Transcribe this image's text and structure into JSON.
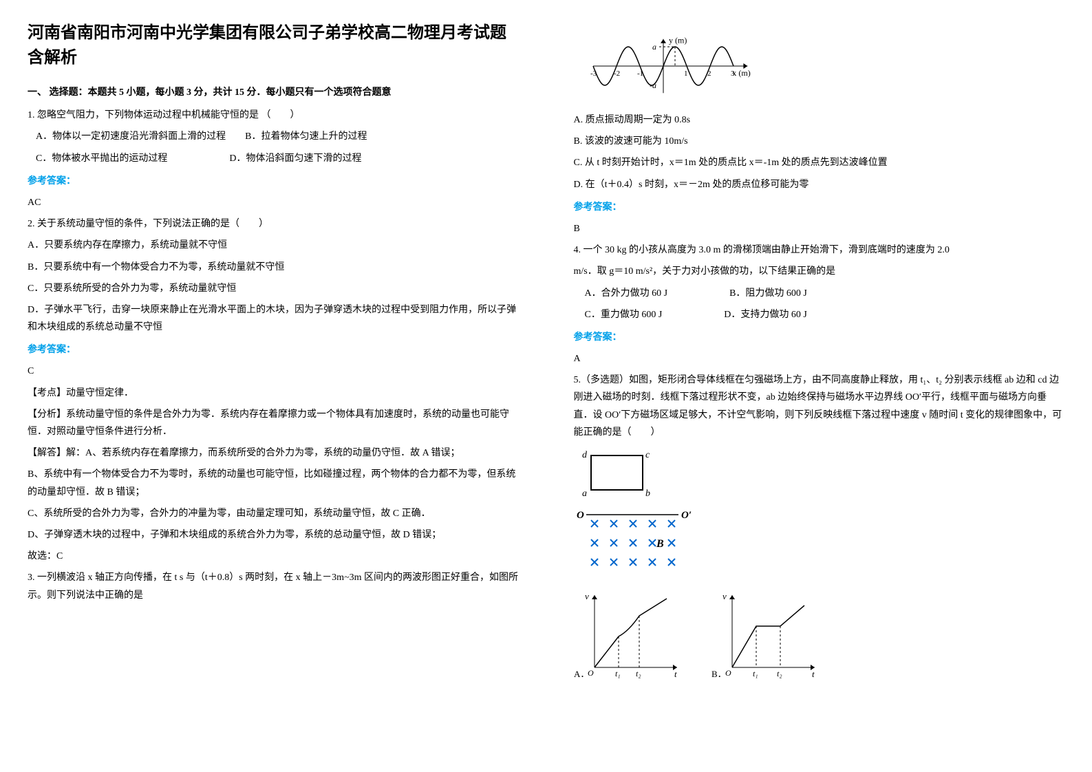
{
  "title": "河南省南阳市河南中光学集团有限公司子弟学校高二物理月考试题含解析",
  "section1": "一、 选择题：本题共 5 小题，每小题 3 分，共计 15 分．每小题只有一个选项符合题意",
  "q1": {
    "stem": "1. 忽略空气阻力，下列物体运动过程中机械能守恒的是    （　　）",
    "a": "A．物体以一定初速度沿光滑斜面上滑的过程",
    "b": "B．拉着物体匀速上升的过程",
    "c": "C．物体被水平抛出的运动过程",
    "d": "D．物体沿斜面匀速下滑的过程",
    "answer_label": "参考答案：",
    "answer": "AC"
  },
  "q2": {
    "stem": "2. 关于系统动量守恒的条件，下列说法正确的是（　　）",
    "a": "A．只要系统内存在摩擦力，系统动量就不守恒",
    "b": "B．只要系统中有一个物体受合力不为零，系统动量就不守恒",
    "c": "C．只要系统所受的合外力为零，系统动量就守恒",
    "d": "D．子弹水平飞行，击穿一块原来静止在光滑水平面上的木块，因为子弹穿透木块的过程中受到阻力作用，所以子弹和木块组成的系统总动量不守恒",
    "answer_label": "参考答案：",
    "answer": "C",
    "kaodian": "【考点】动量守恒定律．",
    "fenxi": "【分析】系统动量守恒的条件是合外力为零．系统内存在着摩擦力或一个物体具有加速度时，系统的动量也可能守恒．对照动量守恒条件进行分析．",
    "jieda1": "【解答】解：A、若系统内存在着摩擦力，而系统所受的合外力为零，系统的动量仍守恒．故 A 错误；",
    "jieda2": "B、系统中有一个物体受合力不为零时，系统的动量也可能守恒，比如碰撞过程，两个物体的合力都不为零，但系统的动量却守恒．故 B 错误；",
    "jieda3": "C、系统所受的合外力为零，合外力的冲量为零，由动量定理可知，系统动量守恒，故 C 正确．",
    "jieda4": "D、子弹穿透木块的过程中，子弹和木块组成的系统合外力为零，系统的总动量守恒，故 D 错误；",
    "jieda5": "故选：C"
  },
  "q3": {
    "stem": "3. 一列横波沿 x 轴正方向传播，在 t s 与（t＋0.8）s 两时刻，在 x 轴上－3m~3m 区间内的两波形图正好重合，如图所示。则下列说法中正确的是"
  },
  "wave": {
    "xmin": -3,
    "xmax": 3.6,
    "amplitude": 1,
    "period": 2,
    "axis_color": "#000",
    "wave_color": "#000",
    "dash_color": "#000",
    "ylabel": "y (m)",
    "xlabel": "x (m)",
    "ticks_x": [
      -3,
      -2,
      -1,
      1,
      2,
      3
    ],
    "alabel": "a",
    "neg_alabel": "-a"
  },
  "q3opts": {
    "a": "A. 质点振动周期一定为 0.8s",
    "b": "B. 该波的波速可能为 10m/s",
    "c": "C. 从 t 时刻开始计时，x＝1m 处的质点比 x＝-1m 处的质点先到达波峰位置",
    "d": "D. 在（t＋0.4）s 时刻，x＝－2m 处的质点位移可能为零",
    "answer_label": "参考答案：",
    "answer": "B"
  },
  "q4": {
    "stem": "4. 一个 30 kg 的小孩从高度为 3.0 m 的滑梯顶端由静止开始滑下，滑到底端时的速度为 2.0",
    "stem2": "m/s．取 g＝10 m/s²，关于力对小孩做的功，以下结果正确的是",
    "a": "A．合外力做功 60 J",
    "b": "B．阻力做功 600 J",
    "c": "C．重力做功 600 J",
    "d": "D．支持力做功 60 J",
    "answer_label": "参考答案：",
    "answer": "A"
  },
  "q5": {
    "stem": "5.（多选题）如图，矩形闭合导体线框在匀强磁场上方，由不同高度静止释放，用 t₁、t₂ 分别表示线框 ab 边和 cd 边刚进入磁场的时刻．线框下落过程形状不变，ab 边始终保持与磁场水平边界线 OO′平行，线框平面与磁场方向垂直．设 OO′下方磁场区域足够大，不计空气影响，则下列反映线框下落过程中速度 v 随时间 t 变化的规律图象中，可能正确的是（　　）"
  },
  "rect": {
    "stroke": "#000",
    "fill": "none",
    "labels": {
      "tl": "d",
      "tr": "c",
      "bl": "a",
      "br": "b"
    }
  },
  "field": {
    "x_color": "#0066cc",
    "o_label": "O",
    "op_label": "O′",
    "b_label": "B"
  },
  "graphs": {
    "axis_color": "#000",
    "curve_color": "#000",
    "v_label": "v",
    "t_label": "t",
    "t1_label": "t₁",
    "t2_label": "t₂",
    "a_label": "A．",
    "b_label": "B．"
  }
}
